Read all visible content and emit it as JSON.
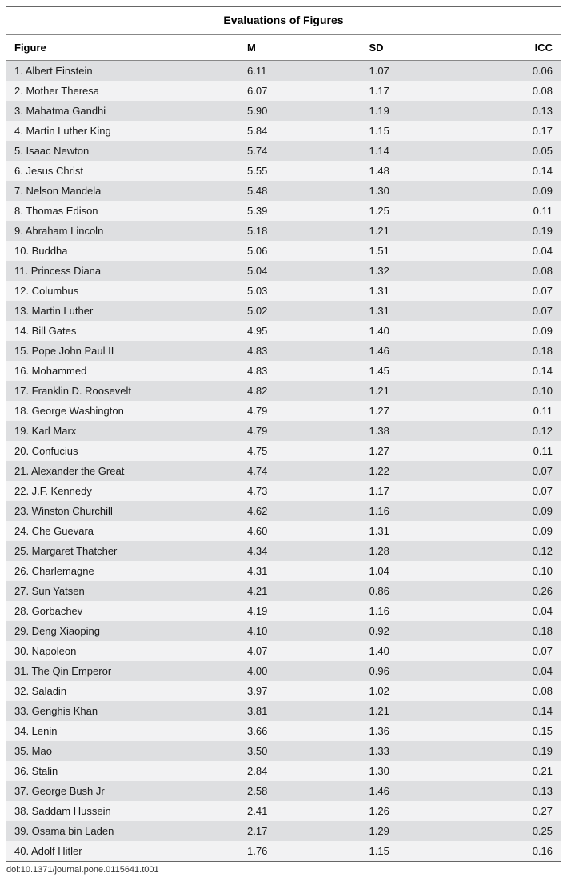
{
  "title": "Evaluations of Figures",
  "columns": [
    "Figure",
    "M",
    "SD",
    "ICC"
  ],
  "col_widths": [
    "42%",
    "22%",
    "22%",
    "14%"
  ],
  "row_colors": {
    "even": "#dedfe1",
    "odd": "#f2f2f3"
  },
  "text_color": "#1a1a1a",
  "rows": [
    {
      "figure": "1. Albert Einstein",
      "m": "6.11",
      "sd": "1.07",
      "icc": "0.06"
    },
    {
      "figure": "2. Mother Theresa",
      "m": "6.07",
      "sd": "1.17",
      "icc": "0.08"
    },
    {
      "figure": "3. Mahatma Gandhi",
      "m": "5.90",
      "sd": "1.19",
      "icc": "0.13"
    },
    {
      "figure": "4. Martin Luther King",
      "m": "5.84",
      "sd": "1.15",
      "icc": "0.17"
    },
    {
      "figure": "5. Isaac Newton",
      "m": "5.74",
      "sd": "1.14",
      "icc": "0.05"
    },
    {
      "figure": "6. Jesus Christ",
      "m": "5.55",
      "sd": "1.48",
      "icc": "0.14"
    },
    {
      "figure": "7. Nelson Mandela",
      "m": "5.48",
      "sd": "1.30",
      "icc": "0.09"
    },
    {
      "figure": "8. Thomas Edison",
      "m": "5.39",
      "sd": "1.25",
      "icc": "0.11"
    },
    {
      "figure": "9. Abraham Lincoln",
      "m": "5.18",
      "sd": "1.21",
      "icc": "0.19"
    },
    {
      "figure": "10. Buddha",
      "m": "5.06",
      "sd": "1.51",
      "icc": "0.04"
    },
    {
      "figure": "11. Princess Diana",
      "m": "5.04",
      "sd": "1.32",
      "icc": "0.08"
    },
    {
      "figure": "12. Columbus",
      "m": "5.03",
      "sd": "1.31",
      "icc": "0.07"
    },
    {
      "figure": "13. Martin Luther",
      "m": "5.02",
      "sd": "1.31",
      "icc": "0.07"
    },
    {
      "figure": "14. Bill Gates",
      "m": "4.95",
      "sd": "1.40",
      "icc": "0.09"
    },
    {
      "figure": "15. Pope John Paul II",
      "m": "4.83",
      "sd": "1.46",
      "icc": "0.18"
    },
    {
      "figure": "16. Mohammed",
      "m": "4.83",
      "sd": "1.45",
      "icc": "0.14"
    },
    {
      "figure": "17. Franklin D. Roosevelt",
      "m": "4.82",
      "sd": "1.21",
      "icc": "0.10"
    },
    {
      "figure": "18. George Washington",
      "m": "4.79",
      "sd": "1.27",
      "icc": "0.11"
    },
    {
      "figure": "19. Karl Marx",
      "m": "4.79",
      "sd": "1.38",
      "icc": "0.12"
    },
    {
      "figure": "20. Confucius",
      "m": "4.75",
      "sd": "1.27",
      "icc": "0.11"
    },
    {
      "figure": "21. Alexander the Great",
      "m": "4.74",
      "sd": "1.22",
      "icc": "0.07"
    },
    {
      "figure": "22. J.F. Kennedy",
      "m": "4.73",
      "sd": "1.17",
      "icc": "0.07"
    },
    {
      "figure": "23. Winston Churchill",
      "m": "4.62",
      "sd": "1.16",
      "icc": "0.09"
    },
    {
      "figure": "24. Che Guevara",
      "m": "4.60",
      "sd": "1.31",
      "icc": "0.09"
    },
    {
      "figure": "25. Margaret Thatcher",
      "m": "4.34",
      "sd": "1.28",
      "icc": "0.12"
    },
    {
      "figure": "26. Charlemagne",
      "m": "4.31",
      "sd": "1.04",
      "icc": "0.10"
    },
    {
      "figure": "27. Sun Yatsen",
      "m": "4.21",
      "sd": "0.86",
      "icc": "0.26"
    },
    {
      "figure": "28. Gorbachev",
      "m": "4.19",
      "sd": "1.16",
      "icc": "0.04"
    },
    {
      "figure": "29. Deng Xiaoping",
      "m": "4.10",
      "sd": "0.92",
      "icc": "0.18"
    },
    {
      "figure": "30. Napoleon",
      "m": "4.07",
      "sd": "1.40",
      "icc": "0.07"
    },
    {
      "figure": "31. The Qin Emperor",
      "m": "4.00",
      "sd": "0.96",
      "icc": "0.04"
    },
    {
      "figure": "32. Saladin",
      "m": "3.97",
      "sd": "1.02",
      "icc": "0.08"
    },
    {
      "figure": "33. Genghis Khan",
      "m": "3.81",
      "sd": "1.21",
      "icc": "0.14"
    },
    {
      "figure": "34. Lenin",
      "m": "3.66",
      "sd": "1.36",
      "icc": "0.15"
    },
    {
      "figure": "35. Mao",
      "m": "3.50",
      "sd": "1.33",
      "icc": "0.19"
    },
    {
      "figure": "36. Stalin",
      "m": "2.84",
      "sd": "1.30",
      "icc": "0.21"
    },
    {
      "figure": "37. George Bush Jr",
      "m": "2.58",
      "sd": "1.46",
      "icc": "0.13"
    },
    {
      "figure": "38. Saddam Hussein",
      "m": "2.41",
      "sd": "1.26",
      "icc": "0.27"
    },
    {
      "figure": "39. Osama bin Laden",
      "m": "2.17",
      "sd": "1.29",
      "icc": "0.25"
    },
    {
      "figure": "40. Adolf Hitler",
      "m": "1.76",
      "sd": "1.15",
      "icc": "0.16"
    }
  ],
  "doi": "doi:10.1371/journal.pone.0115641.t001"
}
